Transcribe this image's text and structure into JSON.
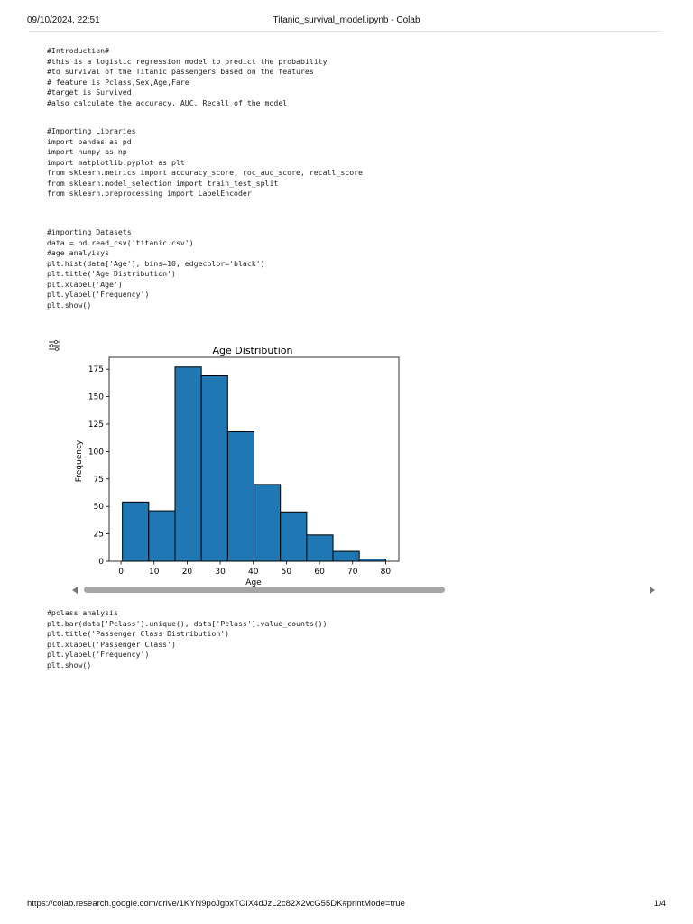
{
  "header": {
    "datetime": "09/10/2024, 22:51",
    "title": "Titanic_survival_model.ipynb - Colab"
  },
  "cells": [
    {
      "code": "#Introduction#\n#this is a logistic regression model to predict the probability\n#to survival of the Titanic passengers based on the features\n# feature is Pclass,Sex,Age,Fare\n#target is Survived\n#also calculate the accuracy, AUC, Recall of the model"
    },
    {
      "code": "#Importing Libraries\nimport pandas as pd\nimport numpy as np\nimport matplotlib.pyplot as plt\nfrom sklearn.metrics import accuracy_score, roc_auc_score, recall_score\nfrom sklearn.model_selection import train_test_split\nfrom sklearn.preprocessing import LabelEncoder"
    },
    {
      "code": "#importing Datasets\ndata = pd.read_csv('titanic.csv')\n#age analyisys\nplt.hist(data['Age'], bins=10, edgecolor='black')\nplt.title('Age Distribution')\nplt.xlabel('Age')\nplt.ylabel('Frequency')\nplt.show()"
    },
    {
      "code": "#pclass analysis\nplt.bar(data['Pclass'].unique(), data['Pclass'].value_counts())\nplt.title('Passenger Class Distribution')\nplt.xlabel('Passenger Class')\nplt.ylabel('Frequency')\nplt.show()"
    }
  ],
  "output_icon": "output-settings-icon",
  "chart_data": {
    "type": "bar",
    "title": "Age Distribution",
    "xlabel": "Age",
    "ylabel": "Frequency",
    "bin_edges": [
      0.42,
      8.38,
      16.34,
      24.29,
      32.25,
      40.21,
      48.17,
      56.13,
      64.08,
      72.04,
      80.0
    ],
    "values": [
      54,
      46,
      177,
      169,
      118,
      70,
      45,
      24,
      9,
      2
    ],
    "xticks": [
      0,
      10,
      20,
      30,
      40,
      50,
      60,
      70,
      80
    ],
    "yticks": [
      0,
      25,
      50,
      75,
      100,
      125,
      150,
      175
    ],
    "xlim": [
      -3.57,
      83.98
    ],
    "ylim": [
      0,
      185.85
    ],
    "bar_color": "#1f77b4",
    "edge_color": "#000000",
    "grid": false
  },
  "footer": {
    "url": "https://colab.research.google.com/drive/1KYN9poJgbxTOIX4dJzL2c82X2vcG55DK#printMode=true",
    "page": "1/4"
  }
}
